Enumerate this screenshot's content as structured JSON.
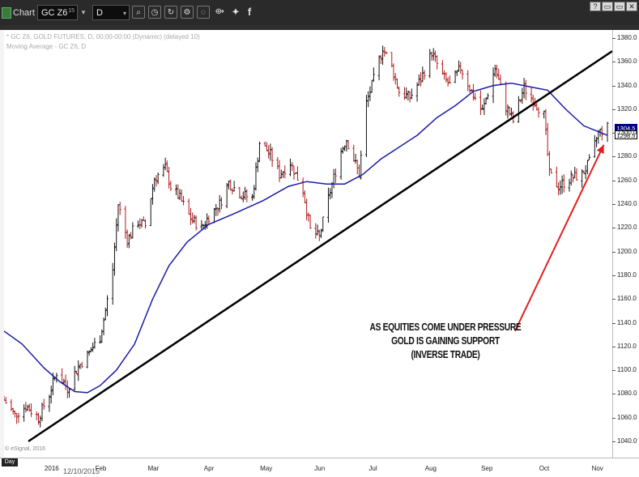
{
  "window": {
    "title": "Chart",
    "symbol": "GC Z6",
    "symbol_superscript": "15",
    "interval": "D",
    "toolbar_icons": [
      "zoom-icon",
      "cursor-icon",
      "refresh-icon",
      "settings-icon",
      "cursor-select-icon",
      "compare-icon",
      "link-icon",
      "twitter-icon",
      "facebook-icon"
    ],
    "window_buttons": [
      "?",
      "▭",
      "▭",
      "✕"
    ]
  },
  "chart": {
    "legend_line1": "* GC Z6, GOLD FUTURES, D, 00:00-00:00 (Dynamic) (delayed 10)",
    "legend_line2": "Moving Average - GC Z6, D",
    "copyright": "© eSignal, 2016",
    "annotation_lines": [
      "AS EQUITIES COME UNDER PRESSURE",
      "GOLD IS GAINING SUPPORT",
      "(INVERSE TRADE)"
    ],
    "bottom_flag": "Day",
    "bottom_date": "12/10/2015",
    "price_tag_upper": "1304.5",
    "price_tag_current": "1298.5",
    "colors": {
      "up_bar": "#111111",
      "down_bar": "#b01818",
      "moving_average": "#1b1baa",
      "trendline": "#000000",
      "arrow": "#e02020"
    }
  },
  "chart_data": {
    "type": "line",
    "title": "",
    "xlabel": "",
    "ylabel": "",
    "yticks": [
      1040,
      1060,
      1080,
      1100,
      1120,
      1140,
      1160,
      1180,
      1200,
      1220,
      1240,
      1260,
      1280,
      1300,
      1320,
      1340,
      1360,
      1380
    ],
    "ytick_labels": [
      "1040.0",
      "1060.0",
      "1080.0",
      "1100.0",
      "1120.0",
      "1140.0",
      "1160.0",
      "1180.0",
      "1200.0",
      "1220.0",
      "1240.0",
      "1260.0",
      "1280.0",
      "1300.0",
      "1320.0",
      "1340.0",
      "1360.0",
      "1380.0"
    ],
    "ylim": [
      1030,
      1390
    ],
    "xtick_labels": [
      "2016",
      "Feb",
      "Mar",
      "Apr",
      "May",
      "Jun",
      "Jul",
      "Aug",
      "Sep",
      "Oct",
      "Nov"
    ],
    "x_domain": [
      "2015-12-10",
      "2016-11-07"
    ],
    "xtick_dates": [
      "2016-01-04",
      "2016-02-01",
      "2016-03-01",
      "2016-04-01",
      "2016-05-02",
      "2016-06-01",
      "2016-07-01",
      "2016-08-01",
      "2016-09-01",
      "2016-10-03",
      "2016-11-01"
    ],
    "price_path": [
      [
        "2015-12-10",
        1075
      ],
      [
        "2015-12-16",
        1062
      ],
      [
        "2015-12-22",
        1070
      ],
      [
        "2015-12-29",
        1060
      ],
      [
        "2016-01-04",
        1080
      ],
      [
        "2016-01-08",
        1098
      ],
      [
        "2016-01-14",
        1085
      ],
      [
        "2016-01-20",
        1103
      ],
      [
        "2016-01-26",
        1115
      ],
      [
        "2016-02-01",
        1128
      ],
      [
        "2016-02-04",
        1150
      ],
      [
        "2016-02-08",
        1185
      ],
      [
        "2016-02-11",
        1240
      ],
      [
        "2016-02-16",
        1210
      ],
      [
        "2016-02-22",
        1225
      ],
      [
        "2016-02-26",
        1222
      ],
      [
        "2016-03-02",
        1262
      ],
      [
        "2016-03-08",
        1270
      ],
      [
        "2016-03-11",
        1255
      ],
      [
        "2016-03-16",
        1245
      ],
      [
        "2016-03-22",
        1228
      ],
      [
        "2016-03-28",
        1220
      ],
      [
        "2016-04-01",
        1230
      ],
      [
        "2016-04-07",
        1240
      ],
      [
        "2016-04-12",
        1258
      ],
      [
        "2016-04-19",
        1248
      ],
      [
        "2016-04-25",
        1245
      ],
      [
        "2016-04-29",
        1292
      ],
      [
        "2016-05-05",
        1282
      ],
      [
        "2016-05-10",
        1265
      ],
      [
        "2016-05-16",
        1275
      ],
      [
        "2016-05-23",
        1252
      ],
      [
        "2016-05-27",
        1218
      ],
      [
        "2016-06-01",
        1212
      ],
      [
        "2016-06-06",
        1245
      ],
      [
        "2016-06-13",
        1285
      ],
      [
        "2016-06-16",
        1295
      ],
      [
        "2016-06-23",
        1265
      ],
      [
        "2016-06-27",
        1325
      ],
      [
        "2016-07-01",
        1345
      ],
      [
        "2016-07-06",
        1372
      ],
      [
        "2016-07-11",
        1355
      ],
      [
        "2016-07-15",
        1335
      ],
      [
        "2016-07-21",
        1330
      ],
      [
        "2016-07-27",
        1345
      ],
      [
        "2016-08-02",
        1368
      ],
      [
        "2016-08-08",
        1348
      ],
      [
        "2016-08-12",
        1340
      ],
      [
        "2016-08-18",
        1355
      ],
      [
        "2016-08-24",
        1335
      ],
      [
        "2016-08-30",
        1318
      ],
      [
        "2016-09-06",
        1355
      ],
      [
        "2016-09-12",
        1322
      ],
      [
        "2016-09-16",
        1310
      ],
      [
        "2016-09-22",
        1338
      ],
      [
        "2016-09-27",
        1328
      ],
      [
        "2016-10-03",
        1315
      ],
      [
        "2016-10-06",
        1265
      ],
      [
        "2016-10-11",
        1255
      ],
      [
        "2016-10-18",
        1262
      ],
      [
        "2016-10-24",
        1265
      ],
      [
        "2016-10-28",
        1275
      ],
      [
        "2016-11-02",
        1300
      ],
      [
        "2016-11-07",
        1304.5
      ]
    ],
    "moving_average": [
      [
        "2015-12-10",
        1133
      ],
      [
        "2015-12-20",
        1122
      ],
      [
        "2016-01-01",
        1102
      ],
      [
        "2016-01-10",
        1090
      ],
      [
        "2016-01-18",
        1082
      ],
      [
        "2016-01-25",
        1081
      ],
      [
        "2016-02-01",
        1087
      ],
      [
        "2016-02-10",
        1100
      ],
      [
        "2016-02-20",
        1122
      ],
      [
        "2016-03-01",
        1160
      ],
      [
        "2016-03-10",
        1188
      ],
      [
        "2016-03-20",
        1208
      ],
      [
        "2016-04-01",
        1223
      ],
      [
        "2016-04-15",
        1232
      ],
      [
        "2016-05-01",
        1243
      ],
      [
        "2016-05-15",
        1255
      ],
      [
        "2016-05-25",
        1259
      ],
      [
        "2016-06-05",
        1257
      ],
      [
        "2016-06-15",
        1257
      ],
      [
        "2016-06-25",
        1265
      ],
      [
        "2016-07-05",
        1278
      ],
      [
        "2016-07-15",
        1288
      ],
      [
        "2016-07-25",
        1298
      ],
      [
        "2016-08-05",
        1313
      ],
      [
        "2016-08-15",
        1323
      ],
      [
        "2016-08-25",
        1335
      ],
      [
        "2016-09-05",
        1340
      ],
      [
        "2016-09-15",
        1342
      ],
      [
        "2016-09-25",
        1339
      ],
      [
        "2016-10-05",
        1336
      ],
      [
        "2016-10-15",
        1320
      ],
      [
        "2016-10-25",
        1306
      ],
      [
        "2016-11-07",
        1298
      ]
    ],
    "trendline": [
      [
        "2015-12-10",
        1040
      ],
      [
        "2016-11-07",
        1368
      ]
    ],
    "arrow": {
      "from": [
        "2016-09-17",
        1133
      ],
      "to": [
        "2016-11-05",
        1290
      ]
    }
  }
}
